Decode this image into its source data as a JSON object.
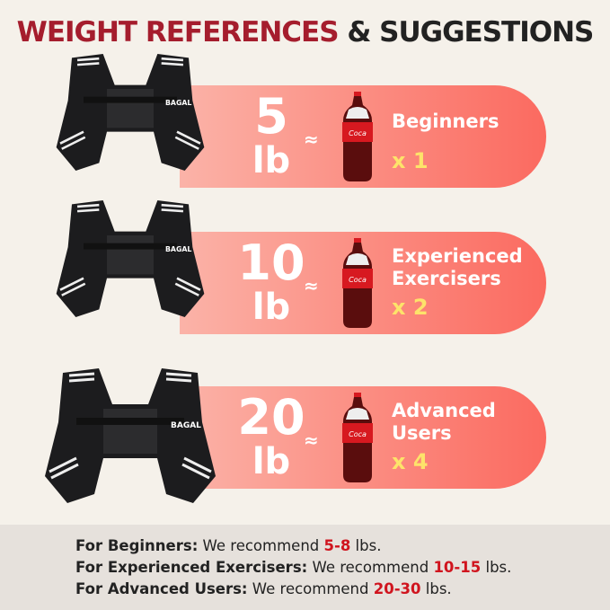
{
  "title": {
    "part1": "WEIGHT REFERENCES",
    "part2": "& SUGGESTIONS",
    "accent": "#a51d2d"
  },
  "rows": [
    {
      "number": "5",
      "unit": "lb",
      "approx": "≈",
      "level_line1": "Beginners",
      "level_line2": "",
      "multiplier": "x 1",
      "vest_brand": "BAGAL"
    },
    {
      "number": "10",
      "unit": "lb",
      "approx": "≈",
      "level_line1": "Experienced",
      "level_line2": "Exercisers",
      "multiplier": "x 2",
      "vest_brand": "BAGAL"
    },
    {
      "number": "20",
      "unit": "lb",
      "approx": "≈",
      "level_line1": "Advanced",
      "level_line2": "Users",
      "multiplier": "x 4",
      "vest_brand": "BAGAL"
    }
  ],
  "footer": [
    {
      "label": "For Beginners:",
      "text": " We recommend ",
      "range": "5-8",
      "unit": " lbs."
    },
    {
      "label": "For Experienced Exercisers:",
      "text": " We recommend ",
      "range": "10-15",
      "unit": " lbs."
    },
    {
      "label": "For Advanced Users:",
      "text": " We recommend ",
      "range": "20-30",
      "unit": " lbs."
    }
  ]
}
